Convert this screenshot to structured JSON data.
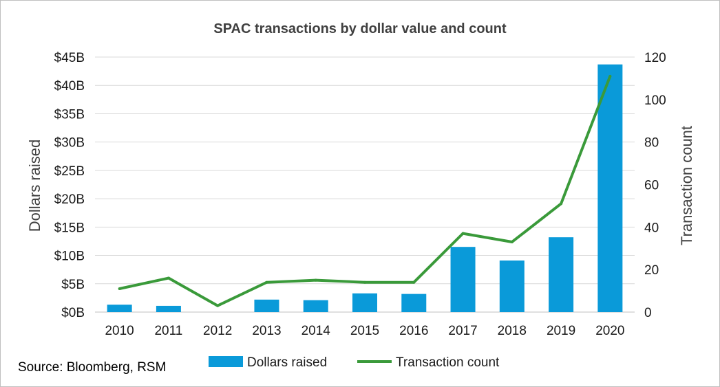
{
  "chart_data": {
    "type": "bar+line",
    "title": "SPAC transactions by dollar value and count",
    "categories": [
      "2010",
      "2011",
      "2012",
      "2013",
      "2014",
      "2015",
      "2016",
      "2017",
      "2018",
      "2019",
      "2020"
    ],
    "series": [
      {
        "name": "Dollars raised",
        "type": "bar",
        "axis": "left",
        "color": "#0a9ad9",
        "values": [
          1.3,
          1.1,
          0,
          2.2,
          2.1,
          3.3,
          3.2,
          11.5,
          9.1,
          13.2,
          43.7
        ]
      },
      {
        "name": "Transaction count",
        "type": "line",
        "axis": "right",
        "color": "#3a9a3a",
        "values": [
          11,
          16,
          3,
          14,
          15,
          14,
          14,
          37,
          33,
          51,
          111
        ]
      }
    ],
    "ylabel_left": "Dollars raised",
    "ylabel_right": "Transaction count",
    "ylim_left": [
      0,
      45
    ],
    "yticks_left": [
      "$0B",
      "$5B",
      "$10B",
      "$15B",
      "$20B",
      "$25B",
      "$30B",
      "$35B",
      "$40B",
      "$45B"
    ],
    "ylim_right": [
      0,
      120
    ],
    "yticks_right": [
      "0",
      "20",
      "40",
      "60",
      "80",
      "100",
      "120"
    ],
    "grid": true,
    "legend_position": "bottom"
  },
  "source": "Source: Bloomberg, RSM"
}
